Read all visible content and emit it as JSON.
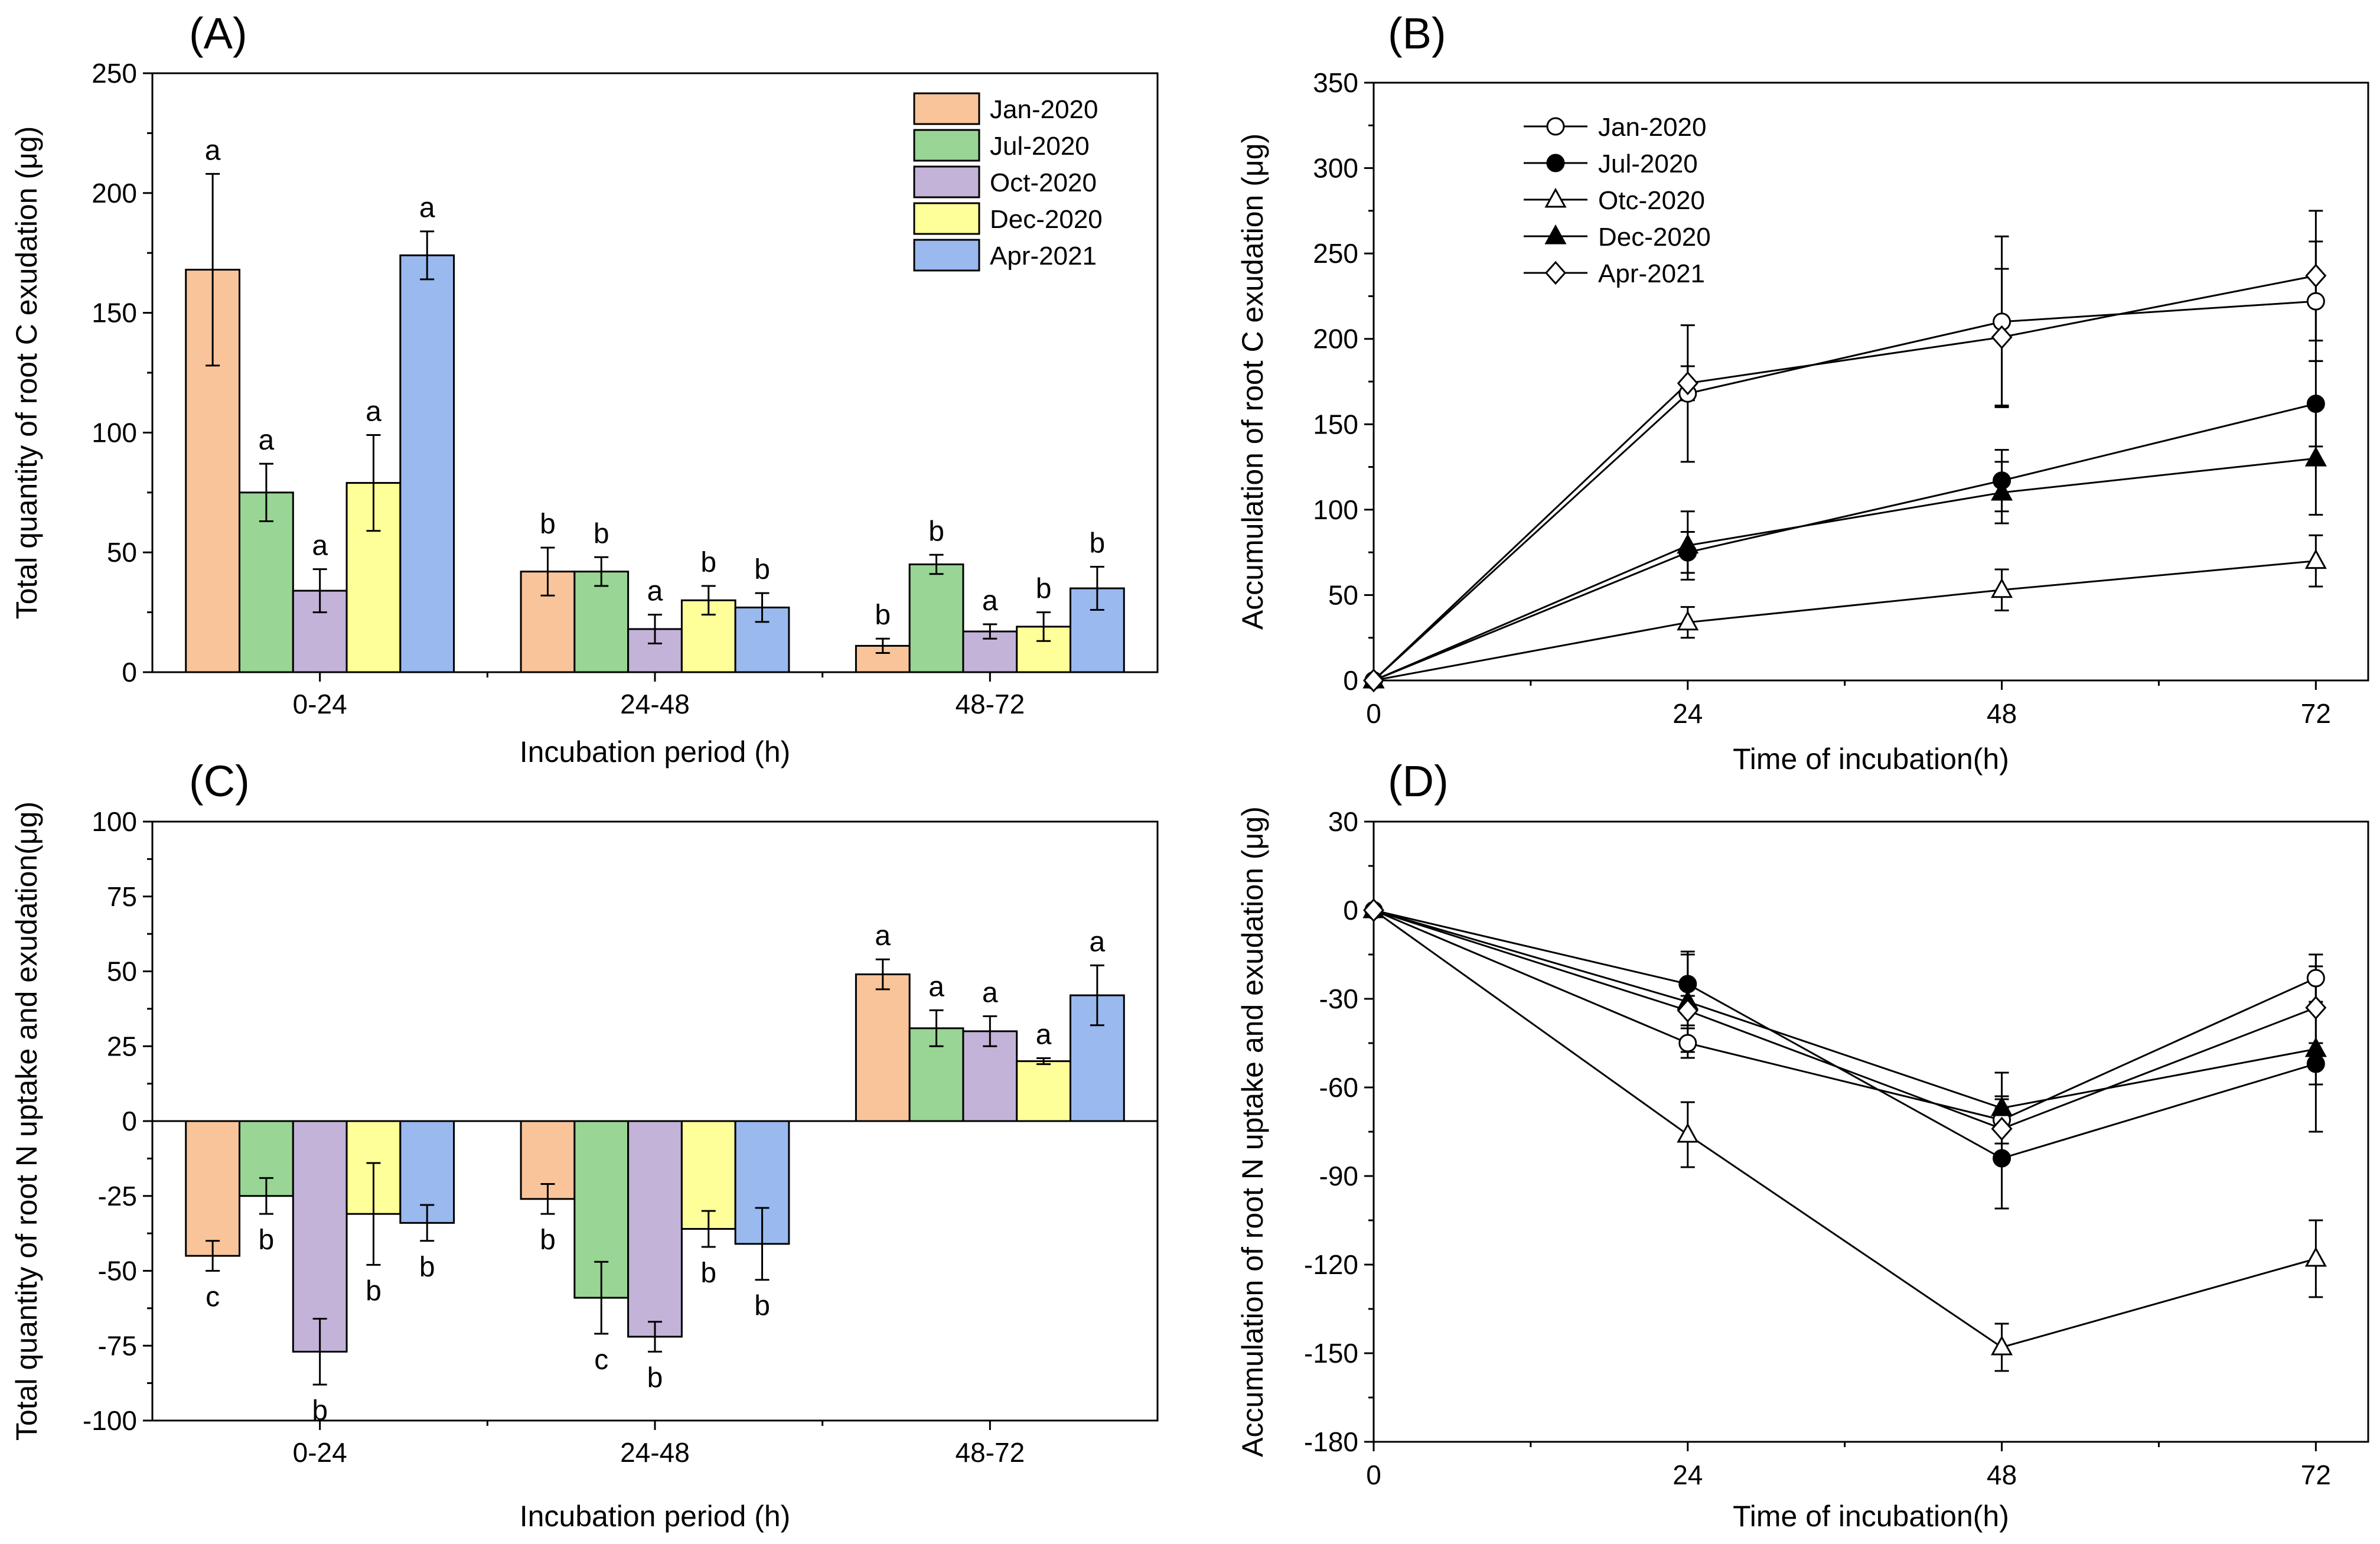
{
  "colors": {
    "Jan-2020": "#f9c49a",
    "Jul-2020": "#99d594",
    "Oct-2020": "#c3b3d9",
    "Dec-2020": "#ffff99",
    "Apr-2021": "#99b9ef"
  },
  "chart_data": [
    {
      "id": "A",
      "type": "bar",
      "panel_label": "(A)",
      "xlabel": "Incubation period (h)",
      "ylabel": "Total quantity of root C exudation (μg)",
      "ylim": [
        0,
        250
      ],
      "yticks": [
        0,
        50,
        100,
        150,
        200,
        250
      ],
      "ytick_labels": [
        "0",
        "50",
        "100",
        "150",
        "200",
        "250"
      ],
      "categories": [
        "0-24",
        "24-48",
        "48-72"
      ],
      "legend_position": "top-right",
      "letters_position": "above",
      "series": [
        {
          "name": "Jan-2020",
          "values": [
            168,
            42,
            11
          ],
          "errors": [
            40,
            10,
            3
          ],
          "letters": [
            "a",
            "b",
            "b"
          ]
        },
        {
          "name": "Jul-2020",
          "values": [
            75,
            42,
            45
          ],
          "errors": [
            12,
            6,
            4
          ],
          "letters": [
            "a",
            "b",
            "b"
          ]
        },
        {
          "name": "Oct-2020",
          "values": [
            34,
            18,
            17
          ],
          "errors": [
            9,
            6,
            3
          ],
          "letters": [
            "a",
            "a",
            "a"
          ]
        },
        {
          "name": "Dec-2020",
          "values": [
            79,
            30,
            19
          ],
          "errors": [
            20,
            6,
            6
          ],
          "letters": [
            "a",
            "b",
            "b"
          ]
        },
        {
          "name": "Apr-2021",
          "values": [
            174,
            27,
            35
          ],
          "errors": [
            10,
            6,
            9
          ],
          "letters": [
            "a",
            "b",
            "b"
          ]
        }
      ]
    },
    {
      "id": "B",
      "type": "line",
      "panel_label": "(B)",
      "xlabel": "Time of incubation(h)",
      "ylabel": "Accumulation of root C exudation (μg)",
      "xlim": [
        0,
        76
      ],
      "ylim": [
        0,
        350
      ],
      "x": [
        0,
        24,
        48,
        72
      ],
      "xticks": [
        0,
        24,
        48,
        72
      ],
      "xtick_labels": [
        "0",
        "24",
        "48",
        "72"
      ],
      "yticks": [
        0,
        50,
        100,
        150,
        200,
        250,
        300,
        350
      ],
      "ytick_labels": [
        "0",
        "50",
        "100",
        "150",
        "200",
        "250",
        "300",
        "350"
      ],
      "legend_position": "top-left",
      "series": [
        {
          "name": "Jan-2020",
          "marker": "circle-open",
          "values": [
            0,
            168,
            210,
            222
          ],
          "errors": [
            0,
            40,
            50,
            35
          ]
        },
        {
          "name": "Jul-2020",
          "marker": "circle-filled",
          "values": [
            0,
            75,
            117,
            162
          ],
          "errors": [
            0,
            12,
            18,
            25
          ]
        },
        {
          "name": "Otc-2020",
          "marker": "triangle-open",
          "values": [
            0,
            34,
            53,
            70
          ],
          "errors": [
            0,
            9,
            12,
            15
          ]
        },
        {
          "name": "Dec-2020",
          "marker": "triangle-filled",
          "values": [
            0,
            79,
            110,
            130
          ],
          "errors": [
            0,
            20,
            18,
            33
          ]
        },
        {
          "name": "Apr-2021",
          "marker": "diamond-open",
          "values": [
            0,
            174,
            201,
            237
          ],
          "errors": [
            0,
            10,
            40,
            38
          ]
        }
      ]
    },
    {
      "id": "C",
      "type": "bar",
      "panel_label": "(C)",
      "xlabel": "Incubation period (h)",
      "ylabel": "Total quantity of root N uptake and exudation(μg)",
      "ylim": [
        -100,
        100
      ],
      "yticks": [
        -100,
        -75,
        -50,
        -25,
        0,
        25,
        50,
        75,
        100
      ],
      "ytick_labels": [
        "-100",
        "-75",
        "-50",
        "-25",
        "0",
        "25",
        "50",
        "75",
        "100"
      ],
      "categories": [
        "0-24",
        "24-48",
        "48-72"
      ],
      "letters_position": "outside",
      "series": [
        {
          "name": "Jan-2020",
          "values": [
            -45,
            -26,
            49
          ],
          "errors": [
            5,
            5,
            5
          ],
          "letters": [
            "c",
            "b",
            "a"
          ]
        },
        {
          "name": "Jul-2020",
          "values": [
            -25,
            -59,
            31
          ],
          "errors": [
            6,
            12,
            6
          ],
          "letters": [
            "b",
            "c",
            "a"
          ]
        },
        {
          "name": "Oct-2020",
          "values": [
            -77,
            -72,
            30
          ],
          "errors": [
            11,
            5,
            5
          ],
          "letters": [
            "b",
            "b",
            "a"
          ]
        },
        {
          "name": "Dec-2020",
          "values": [
            -31,
            -36,
            20
          ],
          "errors": [
            17,
            6,
            1
          ],
          "letters": [
            "b",
            "b",
            "a"
          ]
        },
        {
          "name": "Apr-2021",
          "values": [
            -34,
            -41,
            42
          ],
          "errors": [
            6,
            12,
            10
          ],
          "letters": [
            "b",
            "b",
            "a"
          ]
        }
      ]
    },
    {
      "id": "D",
      "type": "line",
      "panel_label": "(D)",
      "xlabel": "Time of incubation(h)",
      "ylabel": "Accumulation of   root N uptake and exudation (μg)",
      "xlim": [
        0,
        76
      ],
      "ylim": [
        -180,
        30
      ],
      "x": [
        0,
        24,
        48,
        72
      ],
      "xticks": [
        0,
        24,
        48,
        72
      ],
      "xtick_labels": [
        "0",
        "24",
        "48",
        "72"
      ],
      "yticks": [
        -180,
        -150,
        -120,
        -90,
        -60,
        -30,
        0,
        30
      ],
      "ytick_labels": [
        "-180",
        "-150",
        "-120",
        "-90",
        "-60",
        "-30",
        "0",
        "30"
      ],
      "series": [
        {
          "name": "Jan-2020",
          "marker": "circle-open",
          "values": [
            0,
            -45,
            -71,
            -23
          ],
          "errors": [
            0,
            5,
            8,
            8
          ]
        },
        {
          "name": "Jul-2020",
          "marker": "circle-filled",
          "values": [
            0,
            -25,
            -84,
            -52
          ],
          "errors": [
            0,
            10,
            17,
            7
          ]
        },
        {
          "name": "Otc-2020",
          "marker": "triangle-open",
          "values": [
            0,
            -76,
            -148,
            -118
          ],
          "errors": [
            0,
            11,
            8,
            13
          ]
        },
        {
          "name": "Dec-2020",
          "marker": "triangle-filled",
          "values": [
            0,
            -31,
            -67,
            -47
          ],
          "errors": [
            0,
            17,
            12,
            28
          ]
        },
        {
          "name": "Apr-2021",
          "marker": "diamond-open",
          "values": [
            0,
            -34,
            -74,
            -33
          ],
          "errors": [
            0,
            5,
            10,
            18
          ]
        }
      ]
    }
  ]
}
